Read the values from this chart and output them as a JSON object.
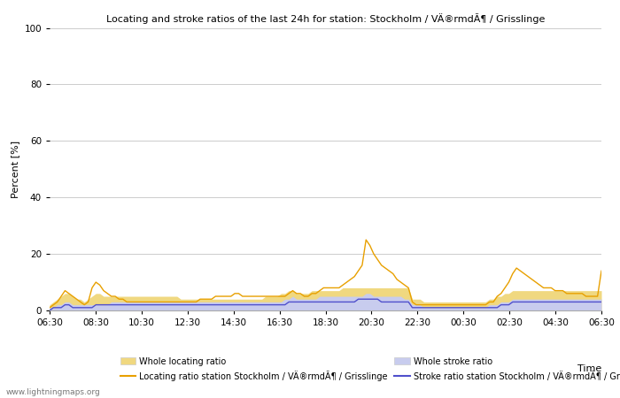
{
  "title": "Locating and stroke ratios of the last 24h for station: Stockholm / VÄ®rmdÃ¶ / Grisslinge",
  "ylabel": "Percent [%]",
  "xlabel": "Time",
  "watermark": "www.lightningmaps.org",
  "ylim": [
    0,
    100
  ],
  "yticks": [
    0,
    20,
    40,
    60,
    80,
    100
  ],
  "xtick_labels": [
    "06:30",
    "08:30",
    "10:30",
    "12:30",
    "14:30",
    "16:30",
    "18:30",
    "20:30",
    "22:30",
    "00:30",
    "02:30",
    "04:30",
    "06:30"
  ],
  "locating_color": "#e8a000",
  "stroke_color": "#5050cc",
  "whole_locating_fill": "#f0d880",
  "whole_stroke_fill": "#c8ccee",
  "background": "#ffffff",
  "grid_color": "#cccccc",
  "legend_labels": [
    "Whole locating ratio",
    "Locating ratio station Stockholm / VÄ®rmdÃ¶ / Grisslinge",
    "Whole stroke ratio",
    "Stroke ratio station Stockholm / VÄ®rmdÃ¶ / Grisslinge"
  ],
  "n_points": 144,
  "whole_locating": [
    2,
    3,
    4,
    5,
    6,
    6,
    5,
    4,
    4,
    3,
    4,
    5,
    6,
    6,
    5,
    5,
    5,
    5,
    5,
    5,
    5,
    5,
    5,
    5,
    5,
    5,
    5,
    5,
    5,
    5,
    5,
    5,
    5,
    5,
    4,
    4,
    4,
    4,
    4,
    4,
    4,
    4,
    4,
    4,
    4,
    4,
    4,
    4,
    4,
    4,
    4,
    4,
    4,
    4,
    4,
    4,
    5,
    5,
    5,
    5,
    6,
    6,
    7,
    7,
    6,
    6,
    6,
    6,
    7,
    7,
    7,
    7,
    7,
    7,
    7,
    7,
    8,
    8,
    8,
    8,
    8,
    8,
    8,
    8,
    8,
    8,
    8,
    8,
    8,
    8,
    8,
    8,
    8,
    8,
    4,
    4,
    4,
    3,
    3,
    3,
    3,
    3,
    3,
    3,
    3,
    3,
    3,
    3,
    3,
    3,
    3,
    3,
    3,
    3,
    4,
    4,
    5,
    5,
    6,
    6,
    7,
    7,
    7,
    7,
    7,
    7,
    7,
    7,
    7,
    7,
    7,
    7,
    7,
    7,
    7,
    7,
    7,
    7,
    7,
    7,
    7,
    7,
    7,
    7
  ],
  "locating_station": [
    1,
    2,
    3,
    5,
    7,
    6,
    5,
    4,
    3,
    2,
    3,
    8,
    10,
    9,
    7,
    6,
    5,
    5,
    4,
    4,
    3,
    3,
    3,
    3,
    3,
    3,
    3,
    3,
    3,
    3,
    3,
    3,
    3,
    3,
    3,
    3,
    3,
    3,
    3,
    4,
    4,
    4,
    4,
    5,
    5,
    5,
    5,
    5,
    6,
    6,
    5,
    5,
    5,
    5,
    5,
    5,
    5,
    5,
    5,
    5,
    5,
    5,
    6,
    7,
    6,
    6,
    5,
    5,
    6,
    6,
    7,
    8,
    8,
    8,
    8,
    8,
    9,
    10,
    11,
    12,
    14,
    16,
    25,
    23,
    20,
    18,
    16,
    15,
    14,
    13,
    11,
    10,
    9,
    8,
    3,
    2,
    2,
    2,
    2,
    2,
    2,
    2,
    2,
    2,
    2,
    2,
    2,
    2,
    2,
    2,
    2,
    2,
    2,
    2,
    3,
    3,
    5,
    6,
    8,
    10,
    13,
    15,
    14,
    13,
    12,
    11,
    10,
    9,
    8,
    8,
    8,
    7,
    7,
    7,
    6,
    6,
    6,
    6,
    6,
    5,
    5,
    5,
    5,
    14
  ],
  "whole_stroke": [
    1,
    1,
    2,
    2,
    3,
    3,
    2,
    2,
    2,
    2,
    2,
    2,
    2,
    2,
    2,
    2,
    3,
    3,
    3,
    3,
    3,
    3,
    3,
    3,
    3,
    3,
    3,
    3,
    3,
    3,
    3,
    3,
    3,
    3,
    3,
    3,
    3,
    3,
    3,
    3,
    3,
    3,
    3,
    3,
    3,
    3,
    3,
    3,
    3,
    3,
    3,
    3,
    3,
    3,
    3,
    3,
    3,
    3,
    3,
    3,
    3,
    4,
    4,
    5,
    4,
    4,
    4,
    4,
    4,
    4,
    5,
    5,
    5,
    5,
    5,
    5,
    5,
    5,
    5,
    5,
    5,
    5,
    6,
    6,
    5,
    5,
    5,
    5,
    5,
    5,
    5,
    5,
    4,
    4,
    2,
    2,
    2,
    1,
    1,
    1,
    1,
    1,
    1,
    1,
    1,
    1,
    1,
    1,
    1,
    1,
    1,
    1,
    1,
    1,
    2,
    2,
    2,
    3,
    3,
    3,
    4,
    4,
    4,
    4,
    4,
    4,
    4,
    4,
    4,
    4,
    4,
    4,
    4,
    4,
    4,
    4,
    4,
    4,
    4,
    4,
    4,
    4,
    4,
    4
  ],
  "stroke_station": [
    0,
    1,
    1,
    1,
    2,
    2,
    1,
    1,
    1,
    1,
    1,
    1,
    2,
    2,
    2,
    2,
    2,
    2,
    2,
    2,
    2,
    2,
    2,
    2,
    2,
    2,
    2,
    2,
    2,
    2,
    2,
    2,
    2,
    2,
    2,
    2,
    2,
    2,
    2,
    2,
    2,
    2,
    2,
    2,
    2,
    2,
    2,
    2,
    2,
    2,
    2,
    2,
    2,
    2,
    2,
    2,
    2,
    2,
    2,
    2,
    2,
    2,
    3,
    3,
    3,
    3,
    3,
    3,
    3,
    3,
    3,
    3,
    3,
    3,
    3,
    3,
    3,
    3,
    3,
    3,
    4,
    4,
    4,
    4,
    4,
    4,
    3,
    3,
    3,
    3,
    3,
    3,
    3,
    3,
    1,
    1,
    1,
    1,
    1,
    1,
    1,
    1,
    1,
    1,
    1,
    1,
    1,
    1,
    1,
    1,
    1,
    1,
    1,
    1,
    1,
    1,
    1,
    2,
    2,
    2,
    3,
    3,
    3,
    3,
    3,
    3,
    3,
    3,
    3,
    3,
    3,
    3,
    3,
    3,
    3,
    3,
    3,
    3,
    3,
    3,
    3,
    3,
    3,
    3
  ]
}
